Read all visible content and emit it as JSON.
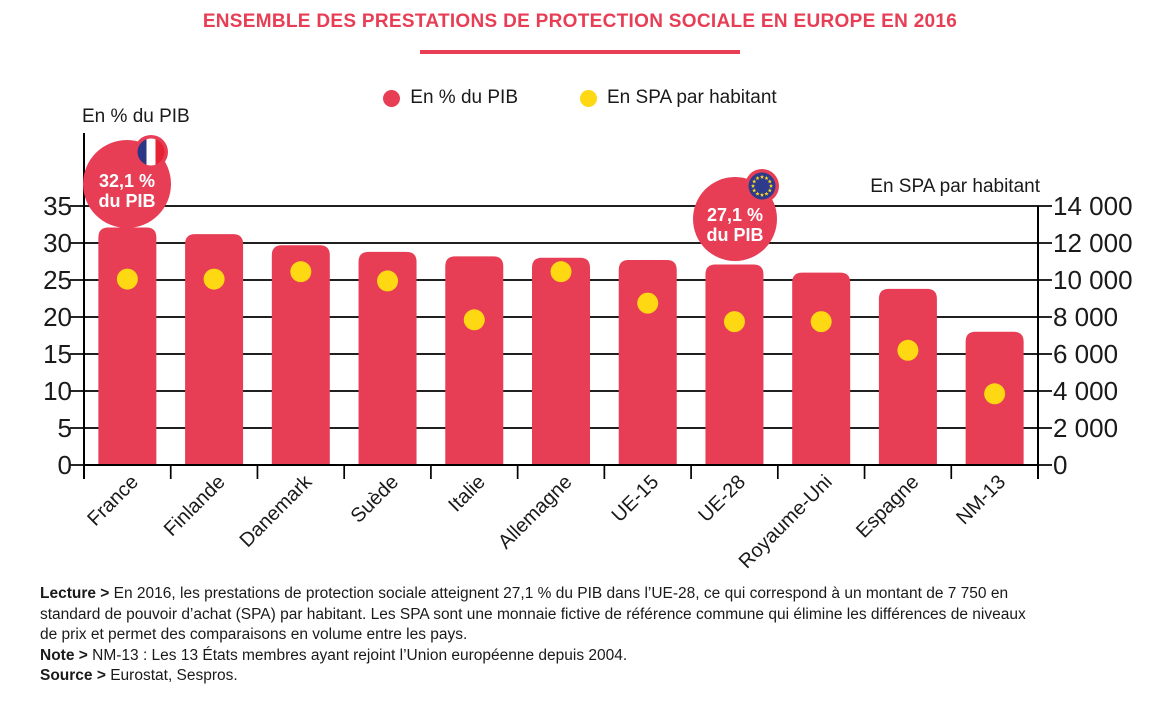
{
  "title": "ENSEMBLE DES PRESTATIONS DE PROTECTION SOCIALE EN EUROPE EN 2016",
  "legend": {
    "items": [
      {
        "label": "En % du PIB",
        "color_key": "red"
      },
      {
        "label": "En SPA par habitant",
        "color_key": "yellow"
      }
    ]
  },
  "chart_data": {
    "type": "bar",
    "subtype": "bars-with-point-overlay-dual-axis",
    "categories": [
      "France",
      "Finlande",
      "Danemark",
      "Suède",
      "Italie",
      "Allemagne",
      "UE-15",
      "UE-28",
      "Royaume-Uni",
      "Espagne",
      "NM-13"
    ],
    "series": [
      {
        "name": "En % du PIB",
        "type": "bar",
        "axis": "left",
        "values": [
          32.1,
          31.2,
          29.7,
          28.8,
          28.2,
          28.0,
          27.7,
          27.1,
          26.0,
          23.8,
          18.0
        ]
      },
      {
        "name": "En SPA par habitant",
        "type": "point",
        "axis": "right",
        "values": [
          10050,
          10050,
          10450,
          9950,
          7850,
          10450,
          8750,
          7750,
          7750,
          6200,
          3850
        ]
      }
    ],
    "left_axis": {
      "title": "En % du PIB",
      "ticks": [
        0,
        5,
        10,
        15,
        20,
        25,
        30,
        35
      ],
      "range": [
        0,
        35
      ]
    },
    "right_axis": {
      "title": "En SPA par habitant",
      "tick_labels": [
        "0",
        "2 000",
        "4 000",
        "6 000",
        "8 000",
        "10 000",
        "12 000",
        "14 000"
      ],
      "range": [
        0,
        14000
      ]
    },
    "grid": "horizontal",
    "legend_position": "top-center",
    "annotations": [
      {
        "target": "France",
        "lines": [
          "32,1 %",
          "du PIB"
        ],
        "flag": "france"
      },
      {
        "target": "UE-28",
        "lines": [
          "27,1 %",
          "du PIB"
        ],
        "flag": "eu"
      }
    ]
  },
  "footer": {
    "lecture_label": "Lecture >",
    "lecture_lines": [
      "En 2016, les prestations de protection sociale atteignent 27,1 % du PIB dans l’UE-28, ce qui correspond à un montant de 7 750 en",
      "standard de pouvoir d’achat (SPA) par habitant. Les SPA sont une monnaie fictive de référence commune qui élimine les différences de niveaux",
      "de prix et permet des comparaisons en volume entre les pays."
    ],
    "note_label": "Note >",
    "note_text": "NM-13 : Les 13 États membres ayant rejoint l’Union européenne depuis 2004.",
    "source_label": "Source >",
    "source_text": "Eurostat, Sespros."
  },
  "colors": {
    "red": "#e73e56",
    "yellow": "#fed813",
    "eu_blue": "#2e3b8c",
    "france_blue": "#2a3685",
    "france_red": "#e52334",
    "axis": "#000000",
    "text": "#1a1a1a"
  }
}
